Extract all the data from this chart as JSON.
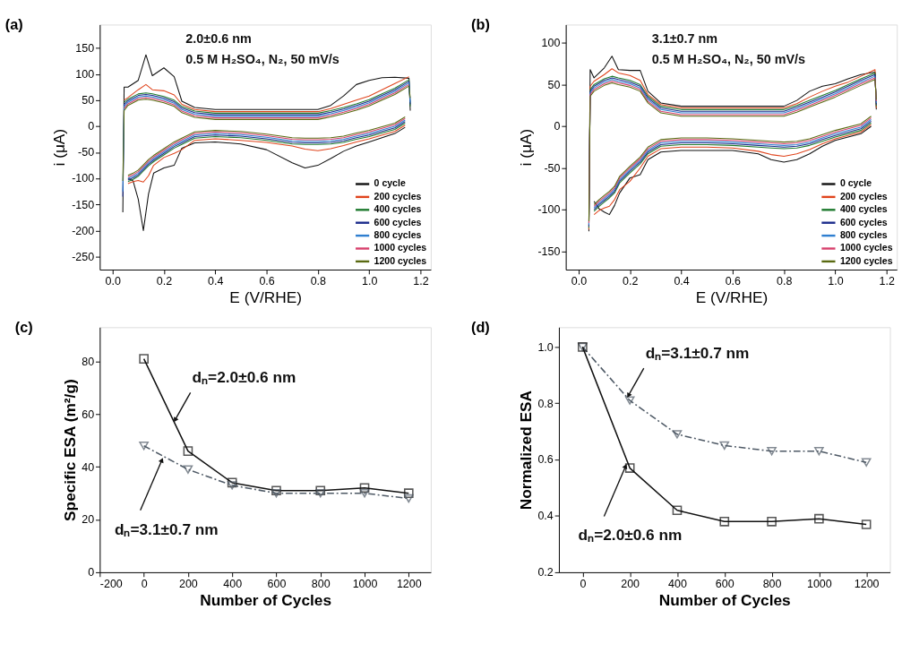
{
  "chart_data": [
    {
      "type": "line",
      "title": "(a)",
      "xlabel": "E (V/RHE)",
      "ylabel": "i (μA)",
      "annotations": [
        "2.0±0.6 nm",
        "0.5 M H₂SO₄, N₂, 50 mV/s"
      ],
      "xlim": [
        -0.05,
        1.24
      ],
      "ylim": [
        -275,
        195
      ],
      "xticks": [
        {
          "value": 0,
          "label": "0.0"
        },
        {
          "value": 0.2,
          "label": "0.2"
        },
        {
          "value": 0.4,
          "label": "0.4"
        },
        {
          "value": 0.6,
          "label": "0.6"
        },
        {
          "value": 0.8,
          "label": "0.8"
        },
        {
          "value": 1,
          "label": "1.0"
        },
        {
          "value": 1.2,
          "label": "1.2"
        }
      ],
      "yticks": [
        -250,
        -200,
        -150,
        -100,
        -50,
        0,
        50,
        100,
        150
      ],
      "legend": "bottom right",
      "grid": false,
      "marker": "none",
      "line_style": "solid",
      "series": [
        {
          "name": "0 cycle",
          "color": "#111111",
          "x": [
            0.04,
            0.045,
            0.06,
            0.1,
            0.13,
            0.155,
            0.2,
            0.24,
            0.27,
            0.32,
            0.4,
            0.5,
            0.6,
            0.7,
            0.8,
            0.85,
            0.9,
            0.95,
            1.0,
            1.05,
            1.1,
            1.155,
            1.16
          ],
          "values": [
            -165,
            75,
            75,
            88,
            137,
            97,
            112,
            95,
            48,
            36,
            32,
            32,
            32,
            32,
            32,
            40,
            58,
            80,
            88,
            93,
            94,
            92,
            30
          ]
        },
        {
          "color": "#111111",
          "x": [
            1.14,
            1.1,
            1.0,
            0.95,
            0.9,
            0.85,
            0.8,
            0.75,
            0.7,
            0.6,
            0.5,
            0.4,
            0.32,
            0.27,
            0.24,
            0.2,
            0.16,
            0.14,
            0.12,
            0.1,
            0.08,
            0.06
          ],
          "values": [
            -2,
            -14,
            -30,
            -38,
            -48,
            -62,
            -75,
            -80,
            -70,
            -45,
            -34,
            -30,
            -32,
            -42,
            -75,
            -80,
            -90,
            -130,
            -200,
            -140,
            -105,
            -100
          ]
        },
        {
          "name": "200 cycles",
          "color": "#e0441c",
          "x": [
            0.045,
            0.06,
            0.1,
            0.13,
            0.155,
            0.2,
            0.24,
            0.27,
            0.32,
            0.4,
            0.5,
            0.6,
            0.7,
            0.8,
            0.85,
            0.9,
            0.95,
            1.0,
            1.05,
            1.1,
            1.155
          ],
          "values": [
            50,
            55,
            70,
            80,
            70,
            68,
            60,
            42,
            32,
            28,
            28,
            28,
            28,
            28,
            34,
            42,
            50,
            58,
            70,
            82,
            95
          ]
        },
        {
          "color": "#e0441c",
          "x": [
            1.14,
            1.1,
            1.0,
            0.95,
            0.9,
            0.85,
            0.8,
            0.75,
            0.7,
            0.6,
            0.5,
            0.4,
            0.32,
            0.27,
            0.24,
            0.2,
            0.16,
            0.14,
            0.12,
            0.1,
            0.08,
            0.06
          ],
          "values": [
            2,
            -10,
            -24,
            -30,
            -37,
            -43,
            -47,
            -44,
            -38,
            -31,
            -27,
            -24,
            -27,
            -45,
            -52,
            -60,
            -75,
            -95,
            -107,
            -104,
            -106,
            -110
          ]
        },
        {
          "name": "400 cycles",
          "color": "#1f7a2e",
          "x": [
            0.045,
            0.06,
            0.1,
            0.13,
            0.155,
            0.2,
            0.24,
            0.27,
            0.32,
            0.4,
            0.5,
            0.6,
            0.7,
            0.8,
            0.85,
            0.9,
            0.95,
            1.0,
            1.05,
            1.1,
            1.155,
            1.16
          ],
          "values": [
            46,
            52,
            62,
            64,
            62,
            57,
            50,
            38,
            29,
            25,
            25,
            25,
            25,
            25,
            30,
            36,
            43,
            51,
            62,
            73,
            89,
            38
          ]
        },
        {
          "color": "#1f7a2e",
          "x": [
            1.14,
            1.1,
            1.0,
            0.95,
            0.9,
            0.85,
            0.8,
            0.75,
            0.7,
            0.6,
            0.5,
            0.4,
            0.32,
            0.27,
            0.24,
            0.2,
            0.16,
            0.14,
            0.12,
            0.1,
            0.08,
            0.06
          ],
          "values": [
            6,
            -6,
            -20,
            -25,
            -31,
            -34,
            -35,
            -35,
            -34,
            -27,
            -22,
            -20,
            -23,
            -35,
            -42,
            -55,
            -68,
            -76,
            -86,
            -96,
            -102,
            -106
          ]
        },
        {
          "name": "600 cycles",
          "color": "#1c2c8c",
          "x": [
            0.04,
            0.045,
            0.06,
            0.1,
            0.13,
            0.155,
            0.2,
            0.24,
            0.27,
            0.32,
            0.4,
            0.5,
            0.6,
            0.7,
            0.8,
            0.85,
            0.9,
            0.95,
            1.0,
            1.05,
            1.1,
            1.155,
            1.16
          ],
          "values": [
            -135,
            42,
            49,
            59,
            61,
            59,
            54,
            47,
            35,
            26,
            22,
            22,
            22,
            22,
            22,
            27,
            33,
            40,
            48,
            59,
            70,
            86,
            42
          ]
        },
        {
          "color": "#1c2c8c",
          "x": [
            1.14,
            1.1,
            1.0,
            0.95,
            0.9,
            0.85,
            0.8,
            0.75,
            0.7,
            0.6,
            0.5,
            0.4,
            0.32,
            0.27,
            0.24,
            0.2,
            0.16,
            0.14,
            0.12,
            0.1,
            0.08,
            0.06
          ],
          "values": [
            9,
            -3,
            -17,
            -22,
            -28,
            -31,
            -32,
            -32,
            -31,
            -24,
            -19,
            -17,
            -20,
            -32,
            -39,
            -52,
            -65,
            -73,
            -83,
            -93,
            -99,
            -103
          ]
        },
        {
          "name": "800 cycles",
          "color": "#2f7fd0",
          "x": [
            0.04,
            0.045,
            0.06,
            0.1,
            0.13,
            0.155,
            0.2,
            0.24,
            0.27,
            0.32,
            0.4,
            0.5,
            0.6,
            0.7,
            0.8,
            0.85,
            0.9,
            0.95,
            1.0,
            1.05,
            1.1,
            1.155,
            1.16
          ],
          "values": [
            -125,
            38,
            46,
            56,
            58,
            56,
            51,
            44,
            32,
            23,
            19,
            19,
            19,
            19,
            19,
            24,
            30,
            37,
            45,
            56,
            67,
            83,
            46
          ]
        },
        {
          "color": "#2f7fd0",
          "x": [
            1.14,
            1.1,
            1.0,
            0.95,
            0.9,
            0.85,
            0.8,
            0.75,
            0.7,
            0.6,
            0.5,
            0.4,
            0.32,
            0.27,
            0.24,
            0.2,
            0.16,
            0.14,
            0.12,
            0.1,
            0.08,
            0.06
          ],
          "values": [
            12,
            0,
            -14,
            -19,
            -25,
            -28,
            -29,
            -29,
            -28,
            -21,
            -16,
            -14,
            -17,
            -29,
            -36,
            -49,
            -62,
            -70,
            -80,
            -90,
            -96,
            -100
          ]
        },
        {
          "name": "1000 cycles",
          "color": "#d8406c",
          "x": [
            0.045,
            0.06,
            0.1,
            0.13,
            0.155,
            0.2,
            0.24,
            0.27,
            0.32,
            0.4,
            0.5,
            0.6,
            0.7,
            0.8,
            0.85,
            0.9,
            0.95,
            1.0,
            1.05,
            1.1,
            1.155
          ],
          "values": [
            34,
            43,
            53,
            55,
            53,
            48,
            41,
            29,
            20,
            16,
            16,
            16,
            16,
            16,
            21,
            27,
            34,
            42,
            53,
            64,
            80
          ]
        },
        {
          "color": "#d8406c",
          "x": [
            1.14,
            1.1,
            1.0,
            0.95,
            0.9,
            0.85,
            0.8,
            0.75,
            0.7,
            0.6,
            0.5,
            0.4,
            0.32,
            0.27,
            0.24,
            0.2,
            0.16,
            0.14,
            0.12,
            0.1,
            0.08,
            0.06
          ],
          "values": [
            15,
            3,
            -11,
            -16,
            -22,
            -25,
            -26,
            -26,
            -25,
            -18,
            -13,
            -11,
            -14,
            -26,
            -33,
            -46,
            -59,
            -67,
            -77,
            -87,
            -93,
            -97
          ]
        },
        {
          "name": "1200 cycles",
          "color": "#5a6a12",
          "x": [
            0.04,
            0.045,
            0.06,
            0.1,
            0.13,
            0.155,
            0.2,
            0.24,
            0.27,
            0.32,
            0.4,
            0.5,
            0.6,
            0.7,
            0.8,
            0.85,
            0.9,
            0.95,
            1.0,
            1.05,
            1.1,
            1.155,
            1.16
          ],
          "values": [
            -105,
            30,
            40,
            50,
            52,
            50,
            45,
            38,
            26,
            17,
            13,
            13,
            13,
            13,
            13,
            18,
            24,
            31,
            39,
            50,
            61,
            77,
            54
          ]
        },
        {
          "color": "#5a6a12",
          "x": [
            1.14,
            1.1,
            1.0,
            0.95,
            0.9,
            0.85,
            0.8,
            0.75,
            0.7,
            0.6,
            0.5,
            0.4,
            0.32,
            0.27,
            0.24,
            0.2,
            0.16,
            0.14,
            0.12,
            0.1,
            0.08,
            0.06
          ],
          "values": [
            18,
            6,
            -8,
            -13,
            -19,
            -22,
            -23,
            -23,
            -22,
            -15,
            -10,
            -8,
            -11,
            -23,
            -30,
            -43,
            -56,
            -64,
            -74,
            -84,
            -90,
            -94
          ]
        }
      ]
    },
    {
      "type": "line",
      "title": "(b)",
      "xlabel": "E (V/RHE)",
      "ylabel": "i (μA)",
      "annotations": [
        "3.1±0.7 nm",
        "0.5 M H₂SO₄, N₂, 50 mV/s"
      ],
      "xlim": [
        -0.05,
        1.24
      ],
      "ylim": [
        -172,
        122
      ],
      "xticks": [
        {
          "value": 0,
          "label": "0.0"
        },
        {
          "value": 0.2,
          "label": "0.2"
        },
        {
          "value": 0.4,
          "label": "0.4"
        },
        {
          "value": 0.6,
          "label": "0.6"
        },
        {
          "value": 0.8,
          "label": "0.8"
        },
        {
          "value": 1,
          "label": "1.0"
        },
        {
          "value": 1.2,
          "label": "1.2"
        }
      ],
      "yticks": [
        -150,
        -100,
        -50,
        0,
        50,
        100
      ],
      "legend": "bottom right",
      "grid": false,
      "marker": "none",
      "line_style": "solid",
      "series": [
        {
          "name": "0 cycle",
          "color": "#111111",
          "x": [
            0.04,
            0.045,
            0.06,
            0.1,
            0.13,
            0.155,
            0.2,
            0.24,
            0.27,
            0.32,
            0.4,
            0.5,
            0.6,
            0.7,
            0.8,
            0.85,
            0.9,
            0.95,
            1.0,
            1.05,
            1.1,
            1.155,
            1.16
          ],
          "values": [
            -126,
            68,
            58,
            70,
            84,
            68,
            67,
            67,
            42,
            28,
            24,
            24,
            24,
            24,
            24,
            31,
            42,
            48,
            51,
            57,
            62,
            65,
            20
          ]
        },
        {
          "color": "#111111",
          "x": [
            1.14,
            1.1,
            1.0,
            0.95,
            0.9,
            0.85,
            0.8,
            0.75,
            0.7,
            0.6,
            0.5,
            0.4,
            0.32,
            0.27,
            0.24,
            0.2,
            0.16,
            0.14,
            0.12,
            0.1,
            0.08,
            0.06
          ],
          "values": [
            0,
            -9,
            -17,
            -24,
            -33,
            -40,
            -43,
            -40,
            -33,
            -29,
            -29,
            -29,
            -31,
            -40,
            -58,
            -62,
            -80,
            -95,
            -106,
            -103,
            -99,
            -90
          ]
        },
        {
          "name": "200 cycles",
          "color": "#e0441c",
          "x": [
            0.04,
            0.045,
            0.06,
            0.1,
            0.13,
            0.155,
            0.2,
            0.24,
            0.27,
            0.32,
            0.4,
            0.5,
            0.6,
            0.7,
            0.8,
            0.85,
            0.9,
            0.95,
            1.0,
            1.05,
            1.1,
            1.155,
            1.16
          ],
          "values": [
            -124,
            48,
            54,
            62,
            69,
            64,
            61,
            55,
            38,
            26,
            22,
            22,
            22,
            22,
            22,
            27,
            35,
            42,
            48,
            53,
            60,
            68,
            22
          ]
        },
        {
          "color": "#e0441c",
          "x": [
            1.14,
            1.1,
            1.0,
            0.95,
            0.9,
            0.85,
            0.8,
            0.75,
            0.7,
            0.6,
            0.5,
            0.4,
            0.32,
            0.27,
            0.24,
            0.2,
            0.16,
            0.14,
            0.12,
            0.1,
            0.08,
            0.06
          ],
          "values": [
            2,
            -7,
            -15,
            -21,
            -28,
            -33,
            -36,
            -34,
            -30,
            -26,
            -25,
            -25,
            -27,
            -36,
            -50,
            -66,
            -76,
            -88,
            -96,
            -98,
            -101,
            -106
          ]
        },
        {
          "name": "400 cycles",
          "color": "#1f7a2e",
          "x": [
            0.04,
            0.045,
            0.06,
            0.1,
            0.13,
            0.155,
            0.2,
            0.24,
            0.27,
            0.32,
            0.4,
            0.5,
            0.6,
            0.7,
            0.8,
            0.85,
            0.9,
            0.95,
            1.0,
            1.05,
            1.1,
            1.155,
            1.16
          ],
          "values": [
            -122,
            44,
            50,
            57,
            60,
            58,
            55,
            50,
            36,
            24,
            20,
            20,
            20,
            20,
            20,
            25,
            31,
            37,
            43,
            50,
            57,
            64,
            24
          ]
        },
        {
          "color": "#1f7a2e",
          "x": [
            1.14,
            1.1,
            1.0,
            0.95,
            0.9,
            0.85,
            0.8,
            0.75,
            0.7,
            0.6,
            0.5,
            0.4,
            0.32,
            0.27,
            0.24,
            0.2,
            0.16,
            0.14,
            0.12,
            0.1,
            0.08,
            0.06
          ],
          "values": [
            4,
            -5,
            -13,
            -18,
            -23,
            -26,
            -27,
            -26,
            -25,
            -23,
            -22,
            -22,
            -24,
            -33,
            -45,
            -56,
            -68,
            -80,
            -86,
            -91,
            -96,
            -102
          ]
        },
        {
          "name": "600 cycles",
          "color": "#1c2c8c",
          "x": [
            0.04,
            0.045,
            0.06,
            0.1,
            0.13,
            0.155,
            0.2,
            0.24,
            0.27,
            0.32,
            0.4,
            0.5,
            0.6,
            0.7,
            0.8,
            0.85,
            0.9,
            0.95,
            1.0,
            1.05,
            1.1,
            1.155,
            1.16
          ],
          "values": [
            -120,
            42,
            48,
            55,
            58,
            56,
            53,
            48,
            34,
            22,
            18,
            18,
            18,
            18,
            18,
            23,
            29,
            35,
            41,
            48,
            55,
            62,
            26
          ]
        },
        {
          "color": "#1c2c8c",
          "x": [
            1.14,
            1.1,
            1.0,
            0.95,
            0.9,
            0.85,
            0.8,
            0.75,
            0.7,
            0.6,
            0.5,
            0.4,
            0.32,
            0.27,
            0.24,
            0.2,
            0.16,
            0.14,
            0.12,
            0.1,
            0.08,
            0.06
          ],
          "values": [
            6,
            -3,
            -11,
            -16,
            -21,
            -24,
            -25,
            -24,
            -23,
            -21,
            -20,
            -20,
            -22,
            -31,
            -43,
            -54,
            -66,
            -78,
            -84,
            -89,
            -94,
            -100
          ]
        },
        {
          "name": "800 cycles",
          "color": "#2f7fd0",
          "x": [
            0.04,
            0.045,
            0.06,
            0.1,
            0.13,
            0.155,
            0.2,
            0.24,
            0.27,
            0.32,
            0.4,
            0.5,
            0.6,
            0.7,
            0.8,
            0.85,
            0.9,
            0.95,
            1.0,
            1.05,
            1.1,
            1.155,
            1.16
          ],
          "values": [
            -118,
            40,
            46,
            53,
            56,
            54,
            51,
            46,
            32,
            20,
            16,
            16,
            16,
            16,
            16,
            21,
            27,
            33,
            39,
            46,
            53,
            60,
            28
          ]
        },
        {
          "color": "#2f7fd0",
          "x": [
            1.14,
            1.1,
            1.0,
            0.95,
            0.9,
            0.85,
            0.8,
            0.75,
            0.7,
            0.6,
            0.5,
            0.4,
            0.32,
            0.27,
            0.24,
            0.2,
            0.16,
            0.14,
            0.12,
            0.1,
            0.08,
            0.06
          ],
          "values": [
            8,
            -1,
            -9,
            -14,
            -19,
            -22,
            -23,
            -22,
            -21,
            -19,
            -18,
            -18,
            -20,
            -29,
            -41,
            -52,
            -64,
            -76,
            -82,
            -87,
            -92,
            -98
          ]
        },
        {
          "name": "1000 cycles",
          "color": "#d8406c",
          "x": [
            0.04,
            0.045,
            0.06,
            0.1,
            0.13,
            0.155,
            0.2,
            0.24,
            0.27,
            0.32,
            0.4,
            0.5,
            0.6,
            0.7,
            0.8,
            0.85,
            0.9,
            0.95,
            1.0,
            1.05,
            1.1,
            1.155,
            1.16
          ],
          "values": [
            -116,
            38,
            44,
            51,
            54,
            52,
            49,
            44,
            30,
            18,
            14,
            14,
            14,
            14,
            14,
            19,
            25,
            31,
            37,
            44,
            51,
            58,
            30
          ]
        },
        {
          "color": "#d8406c",
          "x": [
            1.14,
            1.1,
            1.0,
            0.95,
            0.9,
            0.85,
            0.8,
            0.75,
            0.7,
            0.6,
            0.5,
            0.4,
            0.32,
            0.27,
            0.24,
            0.2,
            0.16,
            0.14,
            0.12,
            0.1,
            0.08,
            0.06
          ],
          "values": [
            10,
            1,
            -7,
            -12,
            -17,
            -20,
            -21,
            -20,
            -19,
            -17,
            -16,
            -16,
            -18,
            -27,
            -39,
            -50,
            -62,
            -74,
            -80,
            -85,
            -90,
            -96
          ]
        },
        {
          "name": "1200 cycles",
          "color": "#5a6a12",
          "x": [
            0.04,
            0.045,
            0.06,
            0.1,
            0.13,
            0.155,
            0.2,
            0.24,
            0.27,
            0.32,
            0.4,
            0.5,
            0.6,
            0.7,
            0.8,
            0.85,
            0.9,
            0.95,
            1.0,
            1.05,
            1.1,
            1.155,
            1.16
          ],
          "values": [
            -114,
            36,
            42,
            49,
            52,
            50,
            47,
            42,
            28,
            16,
            12,
            12,
            12,
            12,
            12,
            17,
            23,
            29,
            35,
            42,
            49,
            56,
            32
          ]
        },
        {
          "color": "#5a6a12",
          "x": [
            1.14,
            1.1,
            1.0,
            0.95,
            0.9,
            0.85,
            0.8,
            0.75,
            0.7,
            0.6,
            0.5,
            0.4,
            0.32,
            0.27,
            0.24,
            0.2,
            0.16,
            0.14,
            0.12,
            0.1,
            0.08,
            0.06
          ],
          "values": [
            12,
            3,
            -5,
            -10,
            -15,
            -18,
            -19,
            -18,
            -17,
            -15,
            -14,
            -14,
            -16,
            -25,
            -37,
            -48,
            -60,
            -72,
            -78,
            -83,
            -88,
            -94
          ]
        }
      ]
    },
    {
      "type": "line",
      "title": "(c)",
      "xlabel": "Number of Cycles",
      "ylabel": "Specific ESA (m²/g)",
      "annotations": [
        {
          "text": "dₙ=2.0±0.6 nm",
          "x": 136,
          "y": 57
        },
        {
          "text": "dₙ=3.1±0.7 nm",
          "x": 89,
          "y": 44
        }
      ],
      "xlim": [
        -200,
        1300
      ],
      "ylim": [
        0,
        93
      ],
      "xticks": [
        -200,
        0,
        200,
        400,
        600,
        800,
        1000,
        1200
      ],
      "yticks": [
        0,
        20,
        40,
        60,
        80
      ],
      "legend": false,
      "grid": false,
      "x": [
        0,
        200,
        400,
        600,
        800,
        1000,
        1200
      ],
      "series": [
        {
          "color": "#111111",
          "marker": "square",
          "line_style": "solid",
          "values": [
            81,
            46,
            34,
            31,
            31,
            32,
            30
          ]
        },
        {
          "color": "#4f5a66",
          "marker": "triangle",
          "line_style": "dashed",
          "values": [
            48,
            39,
            33,
            30,
            30,
            30,
            28
          ]
        }
      ]
    },
    {
      "type": "line",
      "title": "(d)",
      "xlabel": "Number of Cycles",
      "ylabel": "Normalized ESA",
      "annotations": [
        {
          "text": "dₙ=3.1±0.7 nm",
          "x": 189,
          "y": 0.82
        },
        {
          "text": "dₙ=2.0±0.6 nm",
          "x": 189,
          "y": 0.59
        }
      ],
      "xlim": [
        -100,
        1300
      ],
      "ylim": [
        0.2,
        1.07
      ],
      "xticks": [
        0,
        200,
        400,
        600,
        800,
        1000,
        1200
      ],
      "yticks": [
        0.2,
        0.4,
        0.6,
        0.8,
        {
          "value": 1,
          "label": "1.0"
        }
      ],
      "legend": false,
      "grid": false,
      "x": [
        0,
        200,
        400,
        600,
        800,
        1000,
        1200
      ],
      "series": [
        {
          "color": "#4f5a66",
          "marker": "triangle",
          "line_style": "dashed",
          "values": [
            1.0,
            0.81,
            0.69,
            0.65,
            0.63,
            0.63,
            0.59
          ]
        },
        {
          "color": "#111111",
          "marker": "square",
          "line_style": "solid",
          "values": [
            1.0,
            0.57,
            0.42,
            0.38,
            0.38,
            0.39,
            0.37
          ]
        }
      ]
    }
  ]
}
